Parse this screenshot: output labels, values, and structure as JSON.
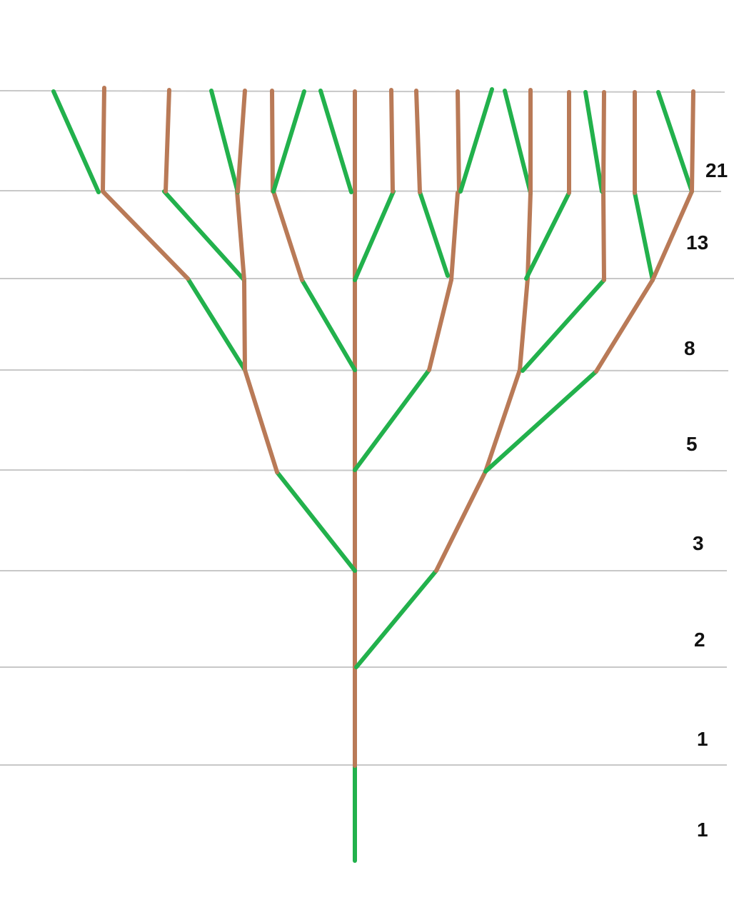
{
  "diagram": {
    "colors": {
      "green": "#22b14c",
      "brown": "#b97a57",
      "guide": "#c8c8c8",
      "background": "#ffffff",
      "label": "#111111"
    },
    "level_labels": [
      "1",
      "1",
      "2",
      "3",
      "5",
      "8",
      "13",
      "21"
    ]
  }
}
